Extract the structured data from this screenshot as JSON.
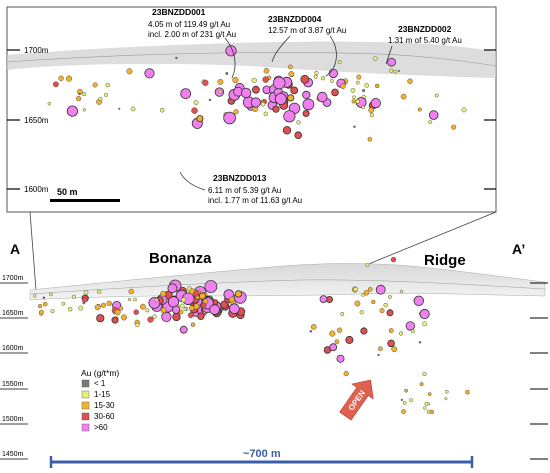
{
  "inset": {
    "elevation_labels": [
      "1700m",
      "1650m",
      "1600m"
    ],
    "scale_bar_label": "50 m",
    "callouts": [
      {
        "id": "23BNZDD001",
        "lines": [
          "4.05 m of 119.49 g/t Au",
          "incl. 2.00 m of 231 g/t Au"
        ]
      },
      {
        "id": "23BNZDD004",
        "lines": [
          "12.57 m of 3.87 g/t Au"
        ]
      },
      {
        "id": "23BNZDD002",
        "lines": [
          "1.31 m of 5.40 g/t Au"
        ]
      },
      {
        "id": "23BNZDD013",
        "lines": [
          "6.11 m of 5.39 g/t Au",
          "incl. 1.77 m of 11.63 g/t Au"
        ]
      }
    ]
  },
  "section": {
    "label_left": "A",
    "label_right": "A’",
    "zone_labels": [
      "Bonanza",
      "Ridge"
    ],
    "elevation_labels": [
      "1700m",
      "1650m",
      "1600m",
      "1550m",
      "1500m",
      "1450m"
    ],
    "open_label": "OPEN",
    "width_label": "~700 m"
  },
  "legend": {
    "title": "Au (g/t*m)",
    "items": [
      {
        "label": "< 1",
        "color": "#7a7a7a"
      },
      {
        "label": "1-15",
        "color": "#e8f07a"
      },
      {
        "label": "15-30",
        "color": "#f0b030"
      },
      {
        "label": "30-60",
        "color": "#e05050"
      },
      {
        "label": ">60",
        "color": "#f080f0"
      }
    ]
  },
  "colors": {
    "accent_blue": "#3a5fa8",
    "open_arrow": "#e06050",
    "terrain": "#b8b8b8"
  }
}
